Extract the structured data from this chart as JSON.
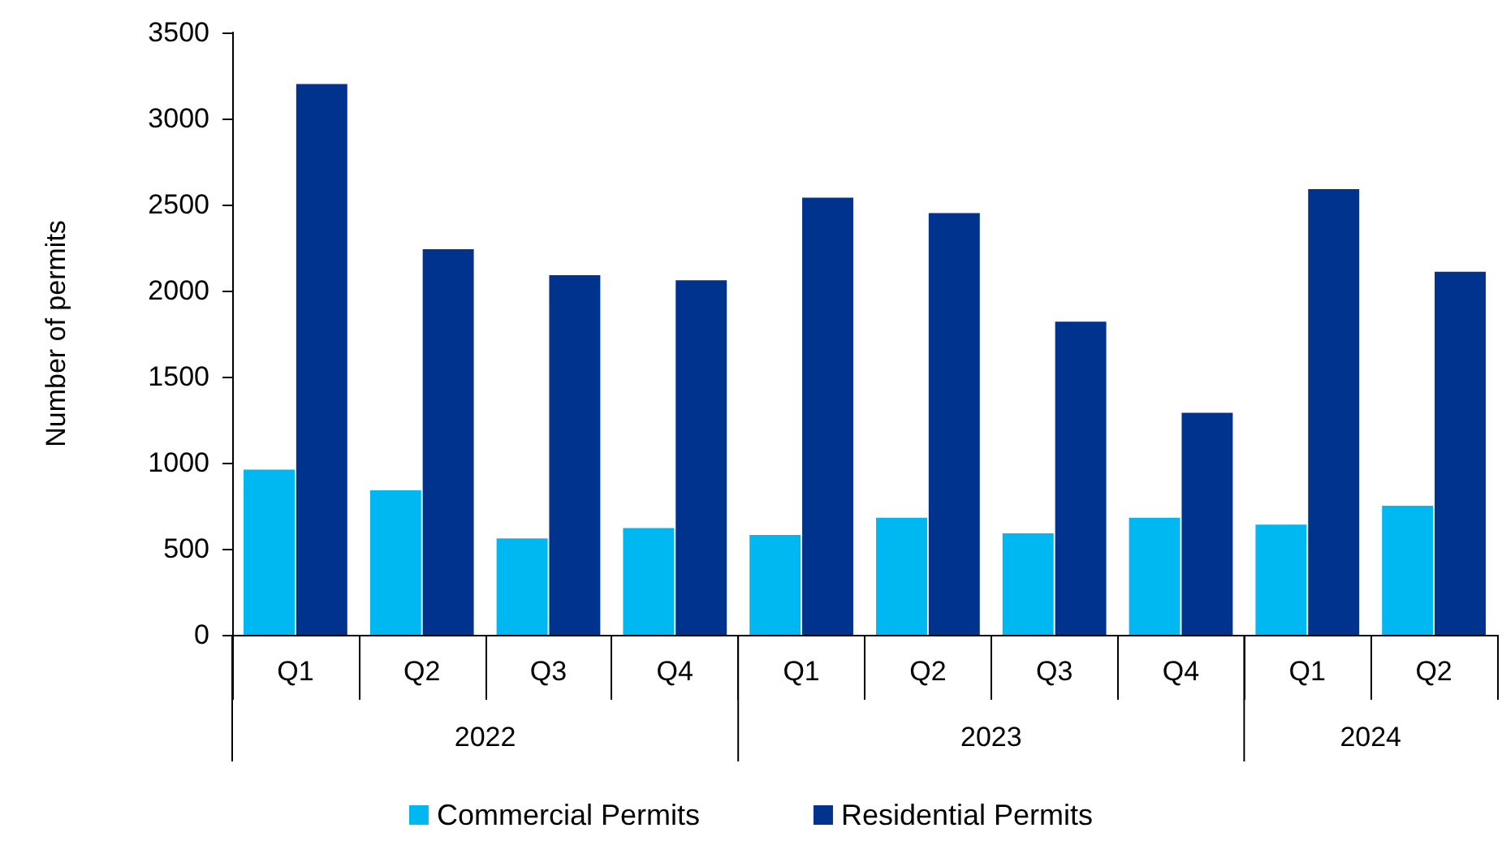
{
  "chart_data": {
    "type": "bar",
    "ylabel": "Number of permits",
    "categories": [
      "Q1",
      "Q2",
      "Q3",
      "Q4",
      "Q1",
      "Q2",
      "Q3",
      "Q4",
      "Q1",
      "Q2"
    ],
    "annotations": [
      "2022",
      "2023",
      "2024"
    ],
    "series": [
      {
        "name": "Commercial Permits",
        "color": "#00b8f1",
        "values": [
          960,
          840,
          560,
          620,
          580,
          680,
          590,
          680,
          640,
          750
        ]
      },
      {
        "name": "Residential Permits",
        "color": "#00338d",
        "values": [
          3200,
          2240,
          2090,
          2060,
          2540,
          2450,
          1820,
          1290,
          2590,
          2110
        ]
      }
    ],
    "ylim": [
      0,
      3500
    ],
    "yticks": [
      0,
      500,
      1000,
      1500,
      2000,
      2500,
      3000,
      3500
    ],
    "grid": false,
    "legend": "bottom"
  }
}
